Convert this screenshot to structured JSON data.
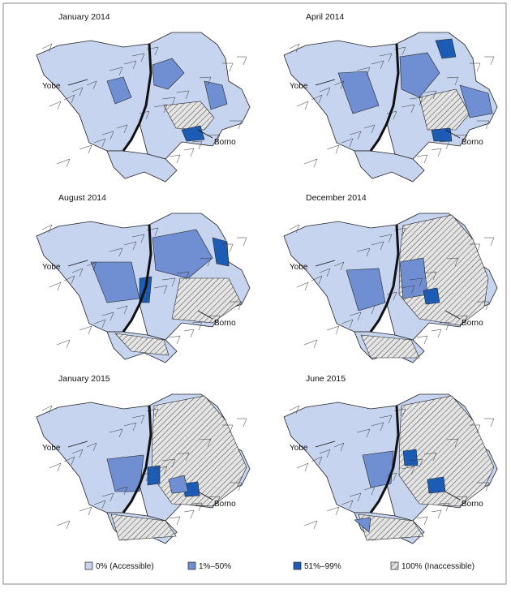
{
  "panels": [
    {
      "title": "January 2014",
      "yobe": "Yobe",
      "borno": "Borno"
    },
    {
      "title": "April 2014",
      "yobe": "Yobe",
      "borno": "Borno"
    },
    {
      "title": "August 2014",
      "yobe": "Yobe",
      "borno": "Borno"
    },
    {
      "title": "December 2014",
      "yobe": "Yobe",
      "borno": "Borno"
    },
    {
      "title": "January 2015",
      "yobe": "Yobe",
      "borno": "Borno"
    },
    {
      "title": "June 2015",
      "yobe": "Yobe",
      "borno": "Borno"
    }
  ],
  "legend": [
    "0% (Accessible)",
    "1%–50%",
    "51%–99%",
    "100% (Inaccessible)"
  ]
}
